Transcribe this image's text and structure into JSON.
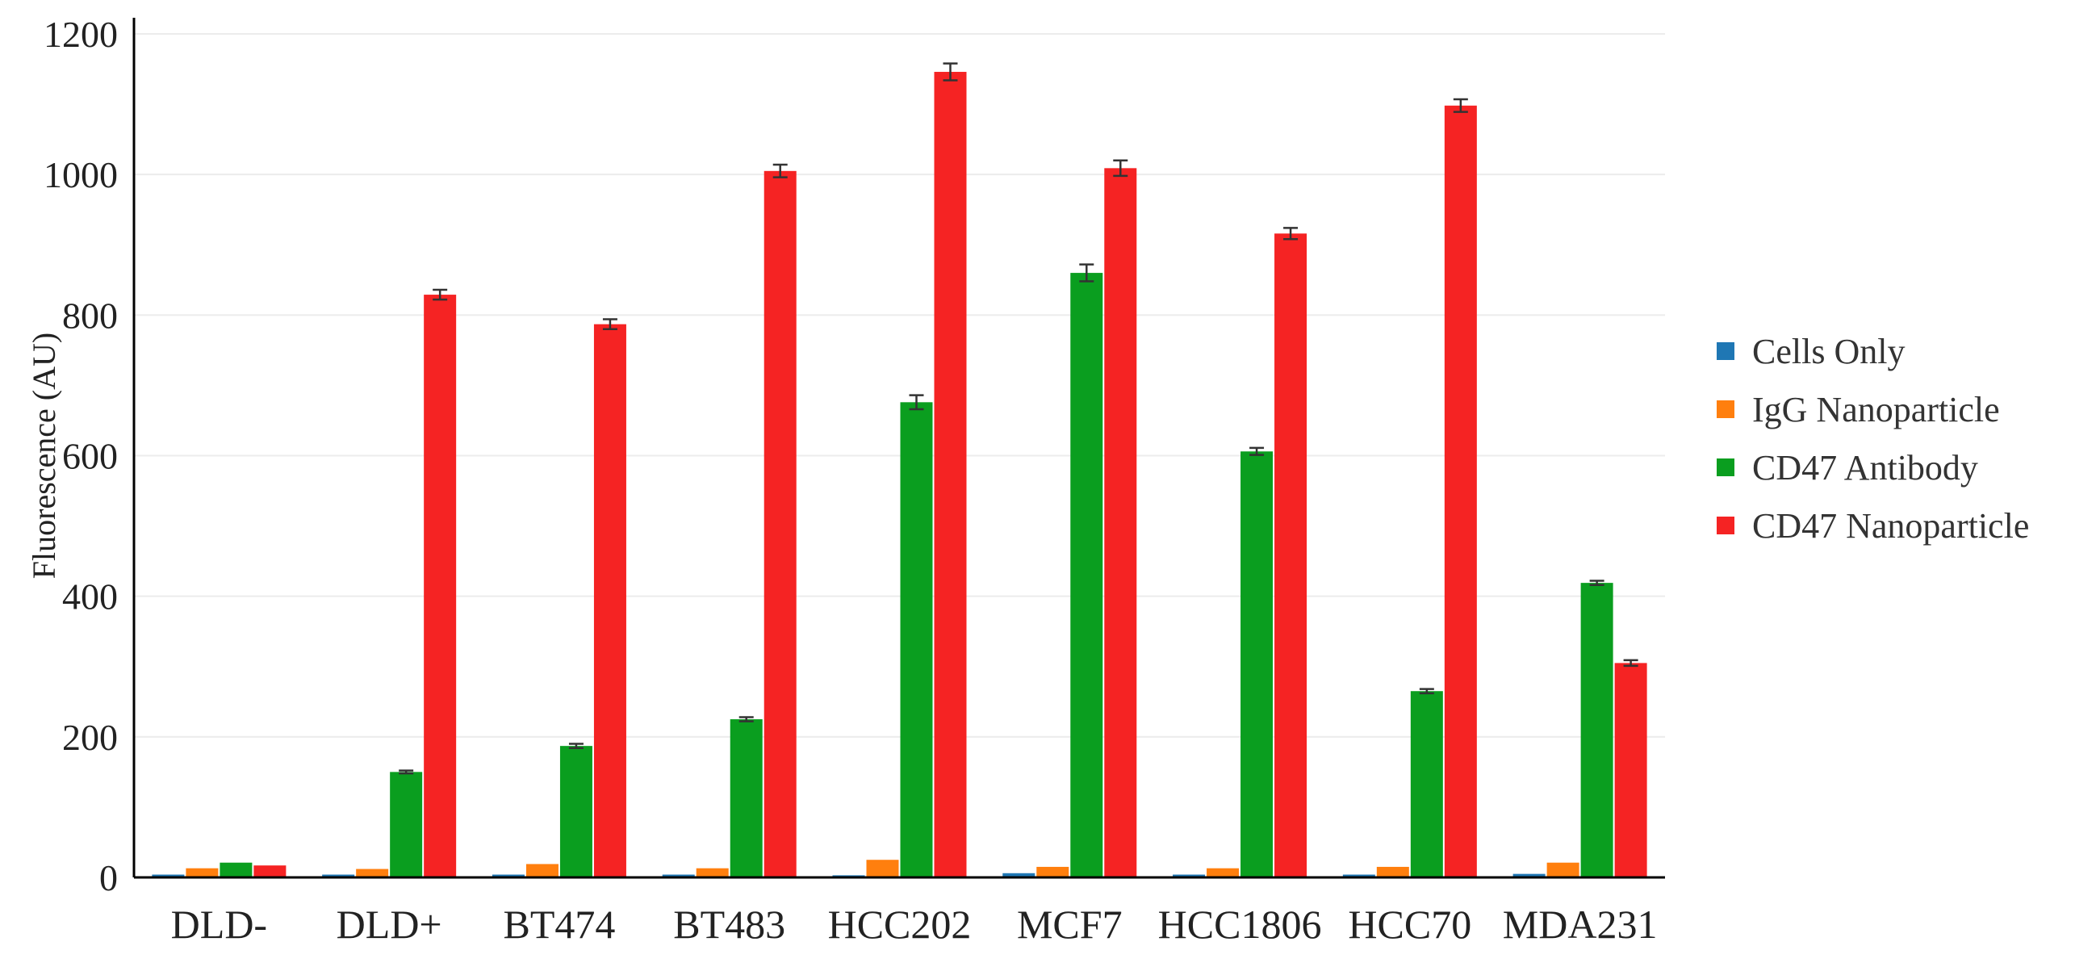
{
  "chart_data": {
    "type": "bar",
    "title": "",
    "xlabel": "",
    "ylabel": "Fluorescence (AU)",
    "ylim": [
      0,
      1200
    ],
    "yticks": [
      0,
      200,
      400,
      600,
      800,
      1000,
      1200
    ],
    "grid": true,
    "legend_position": "right",
    "categories": [
      "DLD-",
      "DLD+",
      "BT474",
      "BT483",
      "HCC202",
      "MCF7",
      "HCC1806",
      "HCC70",
      "MDA231"
    ],
    "series": [
      {
        "name": "Cells Only",
        "color": "#1f77b4",
        "values": [
          4,
          4,
          4,
          4,
          3,
          6,
          4,
          4,
          5
        ],
        "errors": [
          1,
          1,
          1,
          1,
          1,
          1,
          1,
          1,
          1
        ]
      },
      {
        "name": "IgG Nanoparticle",
        "color": "#ff7f0e",
        "values": [
          13,
          12,
          19,
          13,
          25,
          15,
          13,
          15,
          21
        ],
        "errors": [
          2,
          2,
          2,
          2,
          2,
          2,
          2,
          2,
          2
        ]
      },
      {
        "name": "CD47 Antibody",
        "color": "#0a9e1f",
        "values": [
          21,
          150,
          187,
          225,
          676,
          860,
          606,
          265,
          419
        ],
        "errors": [
          2,
          2,
          3,
          3,
          10,
          12,
          5,
          3,
          3
        ]
      },
      {
        "name": "CD47 Nanoparticle",
        "color": "#f52323",
        "values": [
          17,
          829,
          787,
          1005,
          1146,
          1009,
          916,
          1098,
          305
        ],
        "errors": [
          2,
          7,
          7,
          9,
          12,
          11,
          8,
          9,
          4
        ]
      }
    ]
  }
}
